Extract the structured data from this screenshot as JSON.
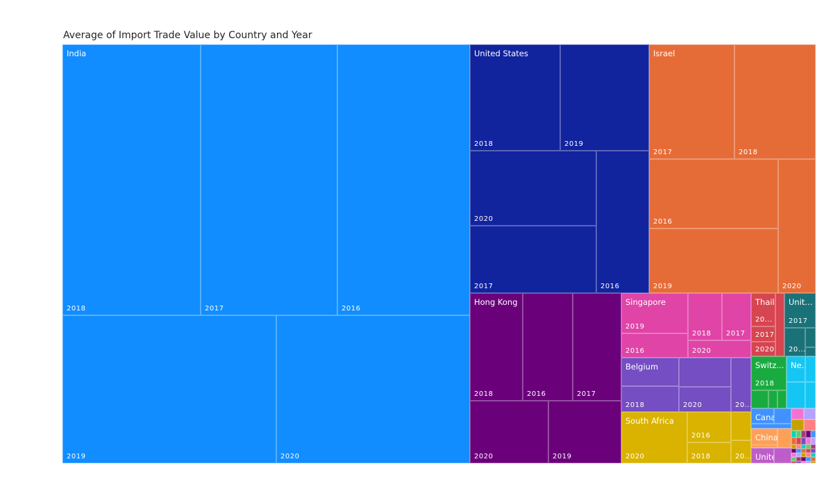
{
  "chart_data": {
    "type": "treemap",
    "title": "Average of Import Trade Value by Country and Year",
    "countries": [
      {
        "name": "India",
        "color": "#118DFF",
        "years": [
          "2018",
          "2017",
          "2016",
          "2019",
          "2020"
        ]
      },
      {
        "name": "United States",
        "color": "#12239E",
        "years": [
          "2018",
          "2019",
          "2020",
          "2017",
          "2016"
        ]
      },
      {
        "name": "Israel",
        "color": "#E66C37",
        "years": [
          "2017",
          "2018",
          "2016",
          "2019",
          "2020"
        ]
      },
      {
        "name": "Hong Kong",
        "color": "#6B007B",
        "years": [
          "2018",
          "2016",
          "2017",
          "2020",
          "2019"
        ]
      },
      {
        "name": "Singapore",
        "color": "#E044A7",
        "years": [
          "2019",
          "2016",
          "2018",
          "2017",
          "2020"
        ]
      },
      {
        "name": "Belgium",
        "color": "#744EC2",
        "years": [
          "",
          "2018",
          "",
          "2020",
          "20..."
        ]
      },
      {
        "name": "South Africa",
        "color": "#D9B300",
        "years": [
          "2020",
          "2016",
          "2018",
          "",
          "20..."
        ]
      },
      {
        "name": "Thail...",
        "color": "#D64550",
        "years": [
          "20...",
          "2017",
          "2020",
          ""
        ]
      },
      {
        "name": "Unit...",
        "color": "#197278",
        "years": [
          "2017",
          "20...",
          "",
          ""
        ]
      },
      {
        "name": "Switz...",
        "color": "#1AAB40",
        "years": [
          "2018",
          "",
          "",
          ""
        ]
      },
      {
        "name": "Ne...",
        "color": "#15C6F4",
        "years": [
          "",
          "",
          "",
          ""
        ]
      },
      {
        "name": "Canada",
        "color": "#4092FF",
        "years": [
          "",
          "",
          ""
        ]
      },
      {
        "name": "China",
        "color": "#FFA058",
        "years": [
          "",
          "",
          ""
        ]
      },
      {
        "name": "United...",
        "color": "#BE5DC9",
        "years": [
          "",
          ""
        ]
      }
    ],
    "other_colors": [
      "#F472D0",
      "#B5A1FF",
      "#C4A200",
      "#FF8080",
      "#0DD3B6",
      "#5ECB71",
      "#A43B76",
      "#6B007B",
      "#4092FF",
      "#E66C37",
      "#D64550",
      "#744EC2"
    ]
  }
}
